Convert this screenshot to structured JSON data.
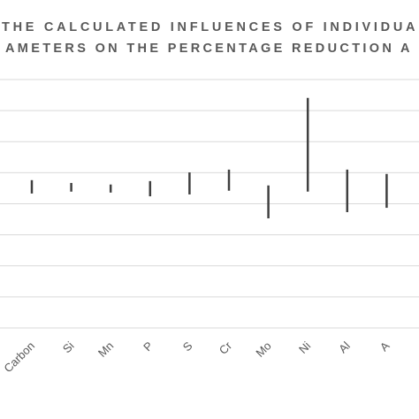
{
  "chart_data": {
    "type": "hilo",
    "title": [
      "THE CALCULATED INFLUENCES OF INDIVIDUA",
      "AMETERS ON THE PERCENTAGE REDUCTION A"
    ],
    "categories": [
      "Carbon",
      "Si",
      "Mn",
      "P",
      "S",
      "Cr",
      "Mo",
      "Ni",
      "Al",
      "A"
    ],
    "high": [
      4.76,
      4.67,
      4.62,
      4.73,
      5.01,
      5.1,
      4.59,
      7.41,
      5.1,
      4.96
    ],
    "low": [
      4.33,
      4.39,
      4.36,
      4.24,
      4.3,
      4.42,
      3.53,
      4.39,
      3.73,
      3.87
    ],
    "color": "#404040",
    "ylim": [
      0,
      8
    ],
    "yticks": [
      0,
      1,
      2,
      3,
      4,
      5,
      6,
      7,
      8
    ],
    "grid": true
  }
}
